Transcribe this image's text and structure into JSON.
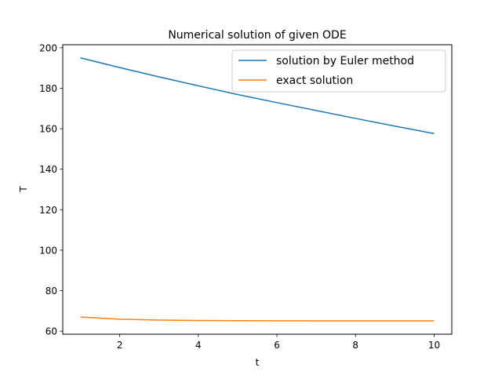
{
  "chart_data": {
    "type": "line",
    "title": "Numerical solution of given ODE",
    "xlabel": "t",
    "ylabel": "T",
    "xlim": [
      0.55,
      10.45
    ],
    "ylim": [
      58.5,
      201.5
    ],
    "xticks": [
      2,
      4,
      6,
      8,
      10
    ],
    "yticks": [
      60,
      80,
      100,
      120,
      140,
      160,
      180,
      200
    ],
    "grid": false,
    "legend_position": "top-right",
    "x": [
      1,
      2,
      3,
      4,
      5,
      6,
      7,
      8,
      9,
      10
    ],
    "series": [
      {
        "name": "solution by Euler method",
        "color": "#1f77b4",
        "values": [
          195.0,
          190.2,
          185.6,
          181.2,
          176.9,
          172.9,
          169.0,
          165.1,
          161.3,
          157.6
        ]
      },
      {
        "name": "exact solution",
        "color": "#ff7f0e",
        "values": [
          67.0,
          65.9,
          65.5,
          65.3,
          65.2,
          65.15,
          65.1,
          65.1,
          65.1,
          65.1
        ]
      }
    ]
  }
}
